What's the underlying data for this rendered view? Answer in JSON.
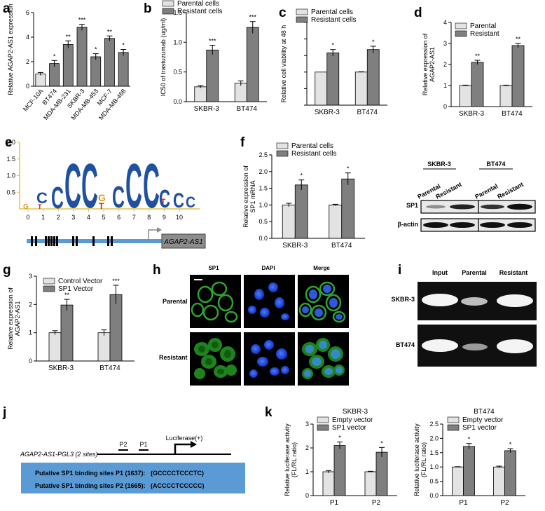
{
  "panels": {
    "a": {
      "letter": "a"
    },
    "b": {
      "letter": "b"
    },
    "c": {
      "letter": "c"
    },
    "d": {
      "letter": "d"
    },
    "e": {
      "letter": "e"
    },
    "f": {
      "letter": "f"
    },
    "g": {
      "letter": "g"
    },
    "h": {
      "letter": "h"
    },
    "i": {
      "letter": "i"
    },
    "j": {
      "letter": "j"
    },
    "k": {
      "letter": "k"
    }
  },
  "chart_data": [
    {
      "id": "a",
      "type": "bar",
      "ylabel": "Relative AGAP2-AS1 expression",
      "categories": [
        "MCF-10A",
        "BT474",
        "MDA-MB-231",
        "SKBR-3",
        "MDA-MB-453",
        "MCF-7",
        "MDA-MB-468"
      ],
      "values": [
        1.0,
        1.85,
        3.4,
        4.8,
        2.4,
        3.9,
        2.75
      ],
      "errors": [
        0.12,
        0.25,
        0.3,
        0.25,
        0.25,
        0.2,
        0.25
      ],
      "significance": [
        "",
        "*",
        "**",
        "***",
        "*",
        "**",
        "*"
      ],
      "ylim": [
        0,
        6
      ],
      "yticks": [
        0,
        2,
        4,
        6
      ],
      "color": "#7f7f7f"
    },
    {
      "id": "b",
      "type": "bar",
      "ylabel": "IC50 of trastuzumab (ug/ml)",
      "categories": [
        "SKBR-3",
        "BT474"
      ],
      "series": [
        {
          "name": "Parental cells",
          "values": [
            0.25,
            0.31
          ],
          "errors": [
            0.02,
            0.04
          ],
          "color": "#e3e3e3",
          "significance": [
            "",
            ""
          ]
        },
        {
          "name": "Resistant cells",
          "values": [
            0.87,
            1.25
          ],
          "errors": [
            0.08,
            0.1
          ],
          "color": "#7f7f7f",
          "significance": [
            "***",
            "***"
          ]
        }
      ],
      "ylim": [
        0,
        1.5
      ],
      "yticks": [
        0.0,
        0.5,
        1.0,
        1.5
      ],
      "ytick_labels": [
        "0.0",
        "0.5",
        "1.0",
        "1.5"
      ],
      "legend": "top-left"
    },
    {
      "id": "c",
      "type": "bar",
      "ylabel": "Relative cell viability at 48 h",
      "categories": [
        "SKBR-3",
        "BT474"
      ],
      "series": [
        {
          "name": "Parental cells",
          "values": [
            1.0,
            1.0
          ],
          "errors": [
            0,
            0.01
          ],
          "color": "#e3e3e3",
          "significance": [
            "",
            ""
          ]
        },
        {
          "name": "Resistant cells",
          "values": [
            1.58,
            1.68
          ],
          "errors": [
            0.1,
            0.1
          ],
          "color": "#7f7f7f",
          "significance": [
            "*",
            "*"
          ]
        }
      ],
      "ylim": [
        0,
        2.5
      ],
      "yticks": [
        0,
        0.5,
        1,
        1.5,
        2,
        2.5
      ],
      "ytick_labels": [
        "",
        "",
        "",
        "",
        "",
        ""
      ],
      "legend": "top-left"
    },
    {
      "id": "d",
      "type": "bar",
      "ylabel": "Relative expression of AGAP2-AS1",
      "categories": [
        "SKBR-3",
        "BT474"
      ],
      "series": [
        {
          "name": "Parental",
          "values": [
            1.0,
            1.0
          ],
          "errors": [
            0.02,
            0.02
          ],
          "color": "#e3e3e3",
          "significance": [
            "",
            ""
          ]
        },
        {
          "name": "Resistant",
          "values": [
            2.1,
            2.9
          ],
          "errors": [
            0.1,
            0.1
          ],
          "color": "#7f7f7f",
          "significance": [
            "**",
            "**"
          ]
        }
      ],
      "ylim": [
        0,
        4
      ],
      "yticks": [
        0,
        1,
        2,
        3,
        4
      ],
      "ytick_labels": [
        "0",
        "1",
        "2",
        "3",
        "4"
      ],
      "legend": "top-left"
    },
    {
      "id": "f",
      "type": "bar",
      "ylabel": "Relative expression of SP1 mRNA",
      "categories": [
        "SKBR-3",
        "BT474"
      ],
      "series": [
        {
          "name": "Parental cells",
          "values": [
            1.0,
            1.0
          ],
          "errors": [
            0.05,
            0.02
          ],
          "color": "#e3e3e3",
          "significance": [
            "",
            ""
          ]
        },
        {
          "name": "Resistant cells",
          "values": [
            1.6,
            1.78
          ],
          "errors": [
            0.15,
            0.18
          ],
          "color": "#7f7f7f",
          "significance": [
            "*",
            "*"
          ]
        }
      ],
      "ylim": [
        0,
        2.5
      ],
      "yticks": [
        0.0,
        0.5,
        1.0,
        1.5,
        2.0,
        2.5
      ],
      "ytick_labels": [
        "0.0",
        "0.5",
        "1.0",
        "1.5",
        "2.0",
        "2.5"
      ],
      "legend": "top-left"
    },
    {
      "id": "g",
      "type": "bar",
      "ylabel": "Relative expression of AGAP2-AS1",
      "categories": [
        "SKBR-3",
        "BT474"
      ],
      "series": [
        {
          "name": "Control Vector",
          "values": [
            1.0,
            1.0
          ],
          "errors": [
            0.07,
            0.1
          ],
          "color": "#e3e3e3",
          "significance": [
            "",
            ""
          ]
        },
        {
          "name": "SP1 Vector",
          "values": [
            1.98,
            2.35
          ],
          "errors": [
            0.2,
            0.33
          ],
          "color": "#7f7f7f",
          "significance": [
            "**",
            "***"
          ]
        }
      ],
      "ylim": [
        0,
        3
      ],
      "yticks": [
        0,
        1,
        2,
        3
      ],
      "ytick_labels": [
        "0",
        "1",
        "2",
        "3"
      ],
      "legend": "top-left"
    },
    {
      "id": "k1",
      "type": "bar",
      "title": "SKBR-3",
      "ylabel": "Relative luciferase activity (FL/RL ratio)",
      "categories": [
        "P1",
        "P2"
      ],
      "series": [
        {
          "name": "Empty vector",
          "values": [
            1.0,
            1.0
          ],
          "errors": [
            0.05,
            0.02
          ],
          "color": "#e3e3e3",
          "significance": [
            "",
            ""
          ]
        },
        {
          "name": "SP1 vector",
          "values": [
            2.1,
            1.82
          ],
          "errors": [
            0.15,
            0.2
          ],
          "color": "#7f7f7f",
          "significance": [
            "*",
            "*"
          ]
        }
      ],
      "ylim": [
        0,
        3
      ],
      "yticks": [
        0,
        1,
        2,
        3
      ],
      "ytick_labels": [
        "0",
        "1",
        "2",
        "3"
      ],
      "legend": "top-left"
    },
    {
      "id": "k2",
      "type": "bar",
      "title": "BT474",
      "ylabel": "Relative luciferase activity (FL/RL ratio)",
      "categories": [
        "P1",
        "P2"
      ],
      "series": [
        {
          "name": "Empty vector",
          "values": [
            1.0,
            1.0
          ],
          "errors": [
            0.01,
            0.03
          ],
          "color": "#e3e3e3",
          "significance": [
            "",
            ""
          ]
        },
        {
          "name": "SP1 vector",
          "values": [
            1.72,
            1.57
          ],
          "errors": [
            0.1,
            0.07
          ],
          "color": "#7f7f7f",
          "significance": [
            "*",
            "*"
          ]
        }
      ],
      "ylim": [
        0,
        2.5
      ],
      "yticks": [
        0.0,
        0.5,
        1.0,
        1.5,
        2.0,
        2.5
      ],
      "ytick_labels": [
        "0.0",
        "0.5",
        "1.0",
        "1.5",
        "2.0",
        "2.5"
      ],
      "legend": "top-left"
    }
  ],
  "logo": {
    "yticks": [
      "0.5",
      "1.0",
      "1.5",
      "2.0"
    ],
    "positions": [
      "0",
      "1",
      "2",
      "3",
      "4",
      "5",
      "6",
      "7",
      "8",
      "9",
      "10"
    ],
    "gene_label": "AGAP2-AS1"
  },
  "western": {
    "groups": [
      "SKBR-3",
      "BT474"
    ],
    "lanes": [
      "Parental",
      "Resistant",
      "Parental",
      "Resistant"
    ],
    "rows": [
      "SP1",
      "β-actin"
    ]
  },
  "if": {
    "columns": [
      "SP1",
      "DAPI",
      "Merge"
    ],
    "rows": [
      "Parental",
      "Resistant"
    ]
  },
  "gel": {
    "columns": [
      "Input",
      "Parental",
      "Resistant"
    ],
    "rows": [
      "SKBR-3",
      "BT474"
    ]
  },
  "construct": {
    "name": "AGAP2-AS1-PGL3 (2 sites)",
    "p2": "P2",
    "p1": "P1",
    "luciferase": "Luciferase(+)",
    "site1": "Putative SP1 binding sites P1 (1637):   (GCCCCTCCCTC)",
    "site2": "Putative SP1 binding sites P2 (1665):   (ACCCCTCCCCC)"
  }
}
